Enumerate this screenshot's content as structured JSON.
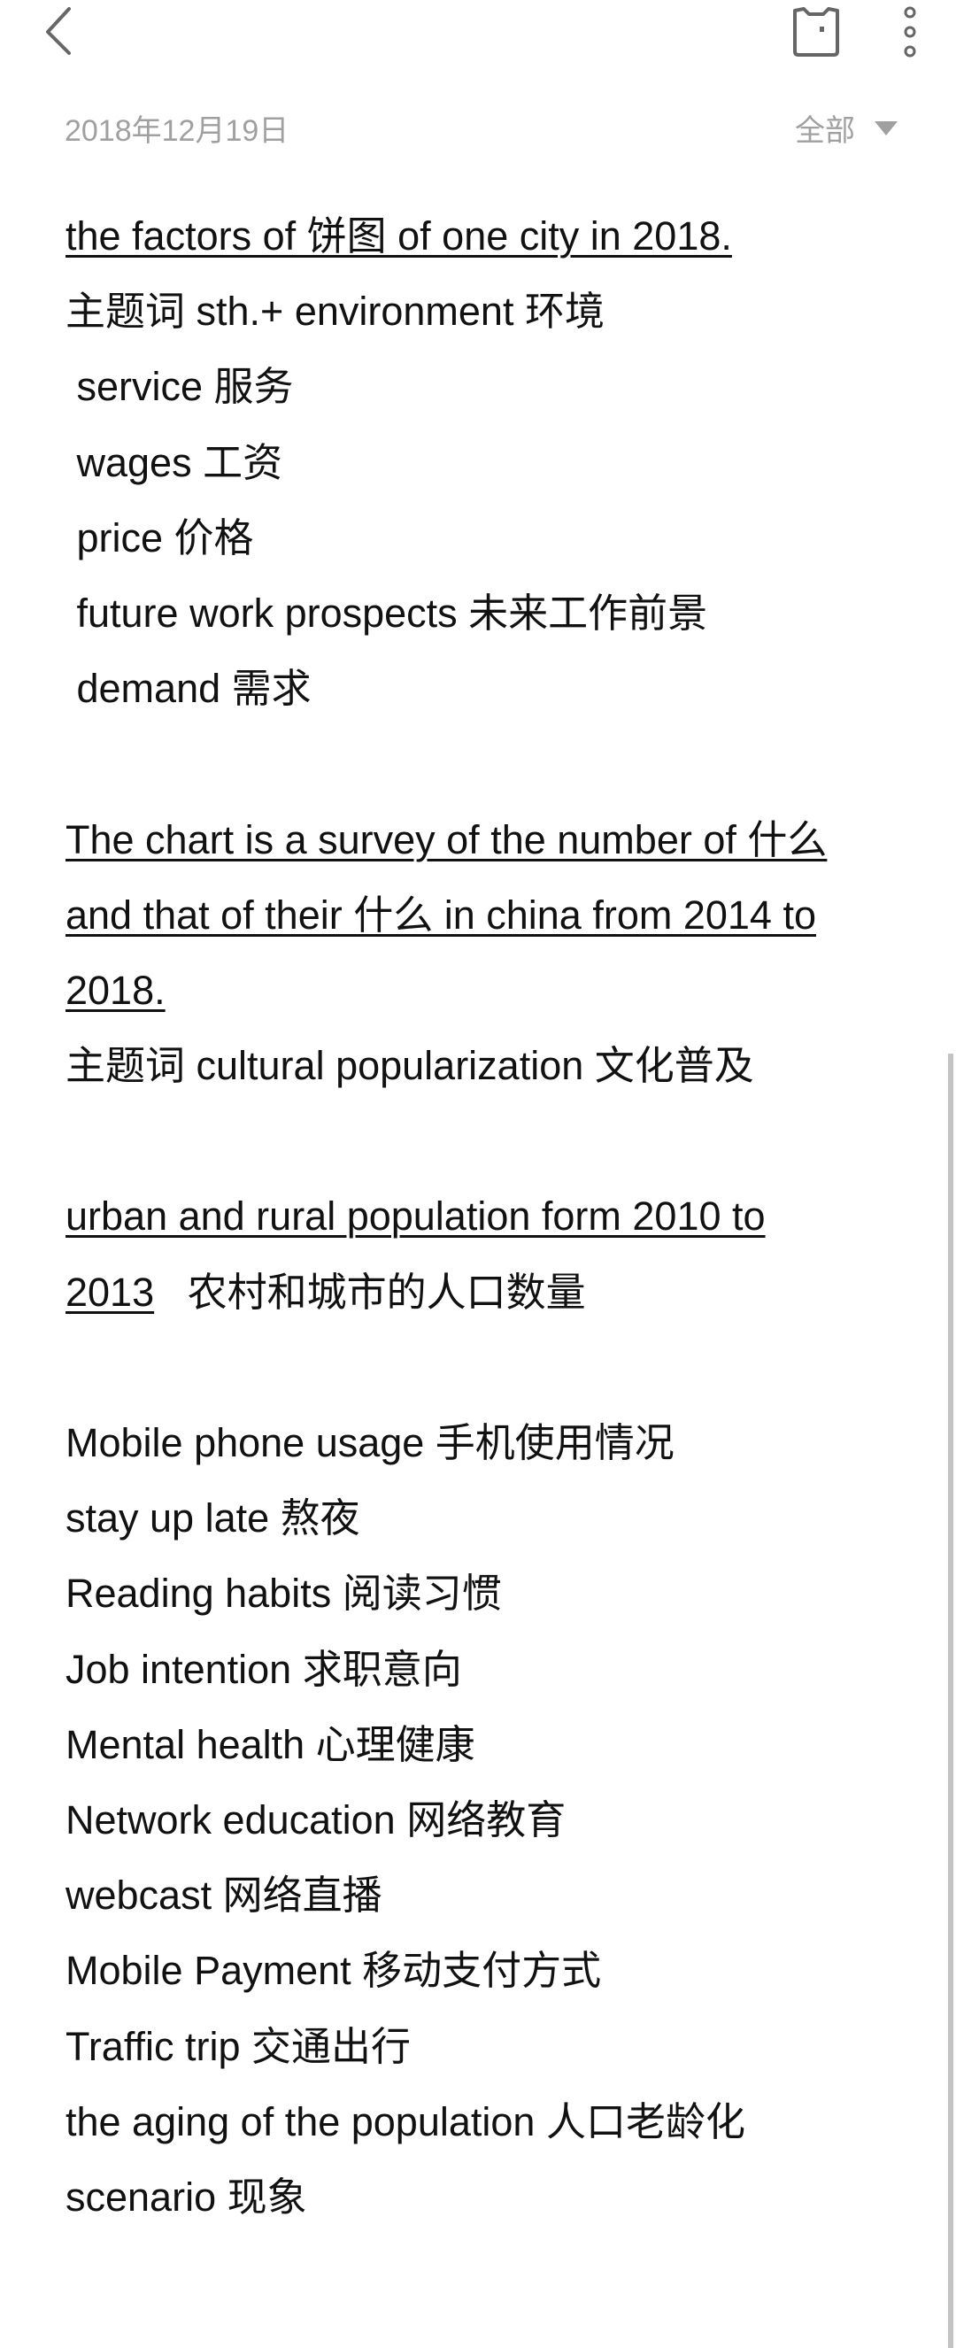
{
  "header": {
    "date": "2018年12月19日",
    "filter_label": "全部"
  },
  "icons": {
    "back": "chevron-left-icon",
    "bookmark": "bookmark-icon",
    "more": "more-vertical-icon"
  },
  "lines": [
    [
      {
        "text": "the factors of 饼图 of one city in 2018.",
        "u": true
      }
    ],
    [
      {
        "text": "主题词 sth.+ environment 环境",
        "u": false
      }
    ],
    [
      {
        "text": " service 服务",
        "u": false
      }
    ],
    [
      {
        "text": " wages 工资",
        "u": false
      }
    ],
    [
      {
        "text": " price 价格",
        "u": false
      }
    ],
    [
      {
        "text": " future work prospects 未来工作前景",
        "u": false
      }
    ],
    [
      {
        "text": " demand 需求",
        "u": false
      }
    ],
    [],
    [
      {
        "text": "The chart is a survey of the number of 什么",
        "u": true
      }
    ],
    [
      {
        "text": "and that of their 什么 in china from 2014 to",
        "u": true
      }
    ],
    [
      {
        "text": "2018.",
        "u": true
      }
    ],
    [
      {
        "text": "主题词 cultural popularization 文化普及",
        "u": false
      }
    ],
    [],
    [
      {
        "text": "urban and rural population form 2010 to",
        "u": true
      }
    ],
    [
      {
        "text": "2013",
        "u": true
      },
      {
        "text": "   农村和城市的人口数量",
        "u": false
      }
    ],
    [],
    [
      {
        "text": "Mobile phone usage 手机使用情况",
        "u": false
      }
    ],
    [
      {
        "text": "stay up late 熬夜",
        "u": false
      }
    ],
    [
      {
        "text": "Reading habits 阅读习惯",
        "u": false
      }
    ],
    [
      {
        "text": "Job intention 求职意向",
        "u": false
      }
    ],
    [
      {
        "text": "Mental health 心理健康",
        "u": false
      }
    ],
    [
      {
        "text": "Network education 网络教育",
        "u": false
      }
    ],
    [
      {
        "text": "webcast 网络直播",
        "u": false
      }
    ],
    [
      {
        "text": "Mobile Payment 移动支付方式",
        "u": false
      }
    ],
    [
      {
        "text": "Traffic trip 交通出行",
        "u": false
      }
    ],
    [
      {
        "text": "the aging of the population 人口老龄化",
        "u": false
      }
    ],
    [
      {
        "text": "scenario 现象",
        "u": false
      }
    ]
  ]
}
